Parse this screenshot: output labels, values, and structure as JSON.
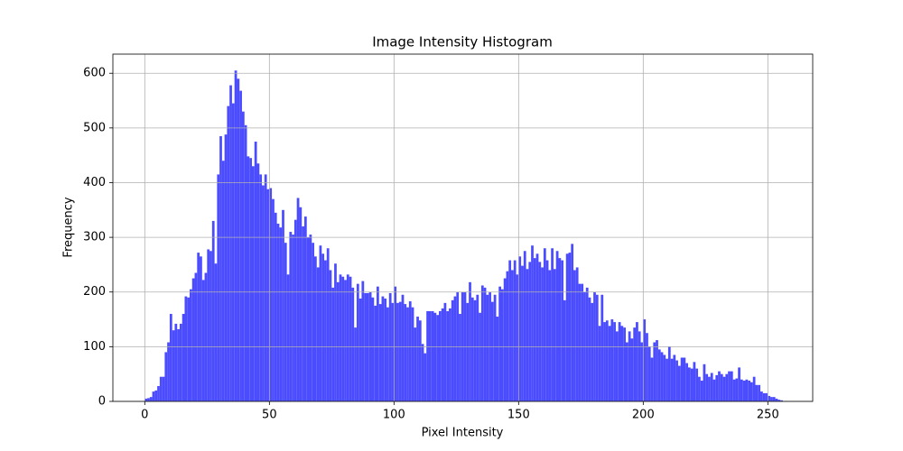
{
  "chart_data": {
    "type": "histogram",
    "title": "Image Intensity Histogram",
    "x_label": "Pixel Intensity",
    "y_label": "Frequency",
    "color": "#4c4cff",
    "grid": true,
    "xlim": [
      -12.8,
      268
    ],
    "ylim": [
      0,
      635
    ],
    "xticks": [
      0,
      50,
      100,
      150,
      200,
      250
    ],
    "yticks": [
      0,
      100,
      200,
      300,
      400,
      500,
      600
    ],
    "bins": [
      0,
      1,
      2,
      3,
      4,
      5,
      6,
      7,
      8,
      9,
      10,
      11,
      12,
      13,
      14,
      15,
      16,
      17,
      18,
      19,
      20,
      21,
      22,
      23,
      24,
      25,
      26,
      27,
      28,
      29,
      30,
      31,
      32,
      33,
      34,
      35,
      36,
      37,
      38,
      39,
      40,
      41,
      42,
      43,
      44,
      45,
      46,
      47,
      48,
      49,
      50,
      51,
      52,
      53,
      54,
      55,
      56,
      57,
      58,
      59,
      60,
      61,
      62,
      63,
      64,
      65,
      66,
      67,
      68,
      69,
      70,
      71,
      72,
      73,
      74,
      75,
      76,
      77,
      78,
      79,
      80,
      81,
      82,
      83,
      84,
      85,
      86,
      87,
      88,
      89,
      90,
      91,
      92,
      93,
      94,
      95,
      96,
      97,
      98,
      99,
      100,
      101,
      102,
      103,
      104,
      105,
      106,
      107,
      108,
      109,
      110,
      111,
      112,
      113,
      114,
      115,
      116,
      117,
      118,
      119,
      120,
      121,
      122,
      123,
      124,
      125,
      126,
      127,
      128,
      129,
      130,
      131,
      132,
      133,
      134,
      135,
      136,
      137,
      138,
      139,
      140,
      141,
      142,
      143,
      144,
      145,
      146,
      147,
      148,
      149,
      150,
      151,
      152,
      153,
      154,
      155,
      156,
      157,
      158,
      159,
      160,
      161,
      162,
      163,
      164,
      165,
      166,
      167,
      168,
      169,
      170,
      171,
      172,
      173,
      174,
      175,
      176,
      177,
      178,
      179,
      180,
      181,
      182,
      183,
      184,
      185,
      186,
      187,
      188,
      189,
      190,
      191,
      192,
      193,
      194,
      195,
      196,
      197,
      198,
      199,
      200,
      201,
      202,
      203,
      204,
      205,
      206,
      207,
      208,
      209,
      210,
      211,
      212,
      213,
      214,
      215,
      216,
      217,
      218,
      219,
      220,
      221,
      222,
      223,
      224,
      225,
      226,
      227,
      228,
      229,
      230,
      231,
      232,
      233,
      234,
      235,
      236,
      237,
      238,
      239,
      240,
      241,
      242,
      243,
      244,
      245,
      246,
      247,
      248,
      249,
      250,
      251,
      252,
      253,
      254,
      255,
      256
    ],
    "values": [
      5,
      6,
      8,
      18,
      20,
      28,
      45,
      45,
      90,
      108,
      160,
      130,
      142,
      132,
      142,
      160,
      192,
      190,
      205,
      225,
      235,
      272,
      265,
      222,
      235,
      278,
      275,
      330,
      252,
      415,
      485,
      440,
      488,
      540,
      578,
      545,
      605,
      590,
      568,
      530,
      505,
      448,
      445,
      430,
      475,
      435,
      415,
      395,
      415,
      388,
      390,
      370,
      345,
      325,
      318,
      350,
      290,
      232,
      310,
      305,
      332,
      372,
      355,
      320,
      338,
      300,
      305,
      290,
      265,
      245,
      285,
      270,
      258,
      280,
      240,
      208,
      252,
      218,
      232,
      228,
      222,
      232,
      228,
      208,
      135,
      215,
      188,
      220,
      198,
      198,
      200,
      190,
      175,
      210,
      178,
      192,
      188,
      172,
      198,
      180,
      210,
      180,
      182,
      195,
      178,
      172,
      183,
      172,
      135,
      155,
      148,
      105,
      88,
      165,
      165,
      165,
      162,
      158,
      165,
      170,
      180,
      165,
      170,
      185,
      192,
      200,
      160,
      200,
      200,
      180,
      218,
      190,
      185,
      195,
      162,
      212,
      208,
      195,
      200,
      182,
      195,
      155,
      210,
      205,
      225,
      238,
      258,
      240,
      258,
      232,
      265,
      248,
      275,
      242,
      255,
      285,
      262,
      270,
      255,
      245,
      280,
      258,
      240,
      280,
      242,
      275,
      262,
      258,
      185,
      270,
      272,
      288,
      240,
      245,
      215,
      215,
      200,
      208,
      190,
      180,
      200,
      195,
      138,
      195,
      145,
      148,
      138,
      150,
      145,
      128,
      145,
      138,
      135,
      108,
      128,
      115,
      135,
      145,
      128,
      108,
      150,
      125,
      100,
      80,
      108,
      112,
      95,
      90,
      85,
      78,
      100,
      78,
      85,
      75,
      65,
      80,
      80,
      70,
      62,
      60,
      72,
      60,
      45,
      38,
      68,
      50,
      45,
      52,
      40,
      48,
      55,
      50,
      45,
      50,
      55,
      55,
      40,
      42,
      62,
      40,
      38,
      40,
      38,
      35,
      45,
      30,
      30,
      18,
      15,
      15,
      10,
      8,
      8,
      5,
      3,
      2
    ]
  }
}
